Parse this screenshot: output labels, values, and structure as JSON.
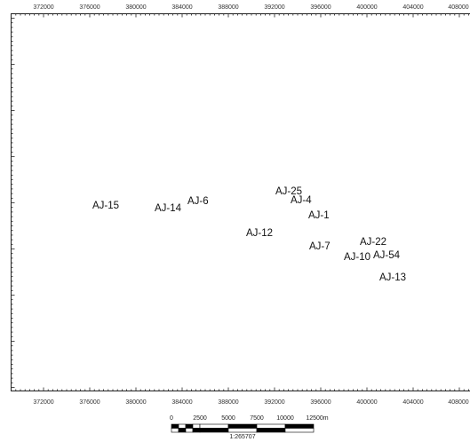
{
  "map": {
    "x_axis_labels": [
      "372000",
      "376000",
      "380000",
      "384000",
      "388000",
      "392000",
      "396000",
      "400000",
      "404000",
      "408000"
    ],
    "wells": [
      {
        "label": "AJ-15"
      },
      {
        "label": "AJ-14"
      },
      {
        "label": "AJ-6"
      },
      {
        "label": "AJ-25"
      },
      {
        "label": "AJ-4"
      },
      {
        "label": "AJ-1"
      },
      {
        "label": "AJ-12"
      },
      {
        "label": "AJ-7"
      },
      {
        "label": "AJ-22"
      },
      {
        "label": "AJ-10"
      },
      {
        "label": "AJ-54"
      },
      {
        "label": "AJ-13"
      }
    ]
  },
  "scale_bar": {
    "labels": [
      "0",
      "2500",
      "5000",
      "7500",
      "10000",
      "12500m"
    ],
    "ratio": "1:265707"
  }
}
